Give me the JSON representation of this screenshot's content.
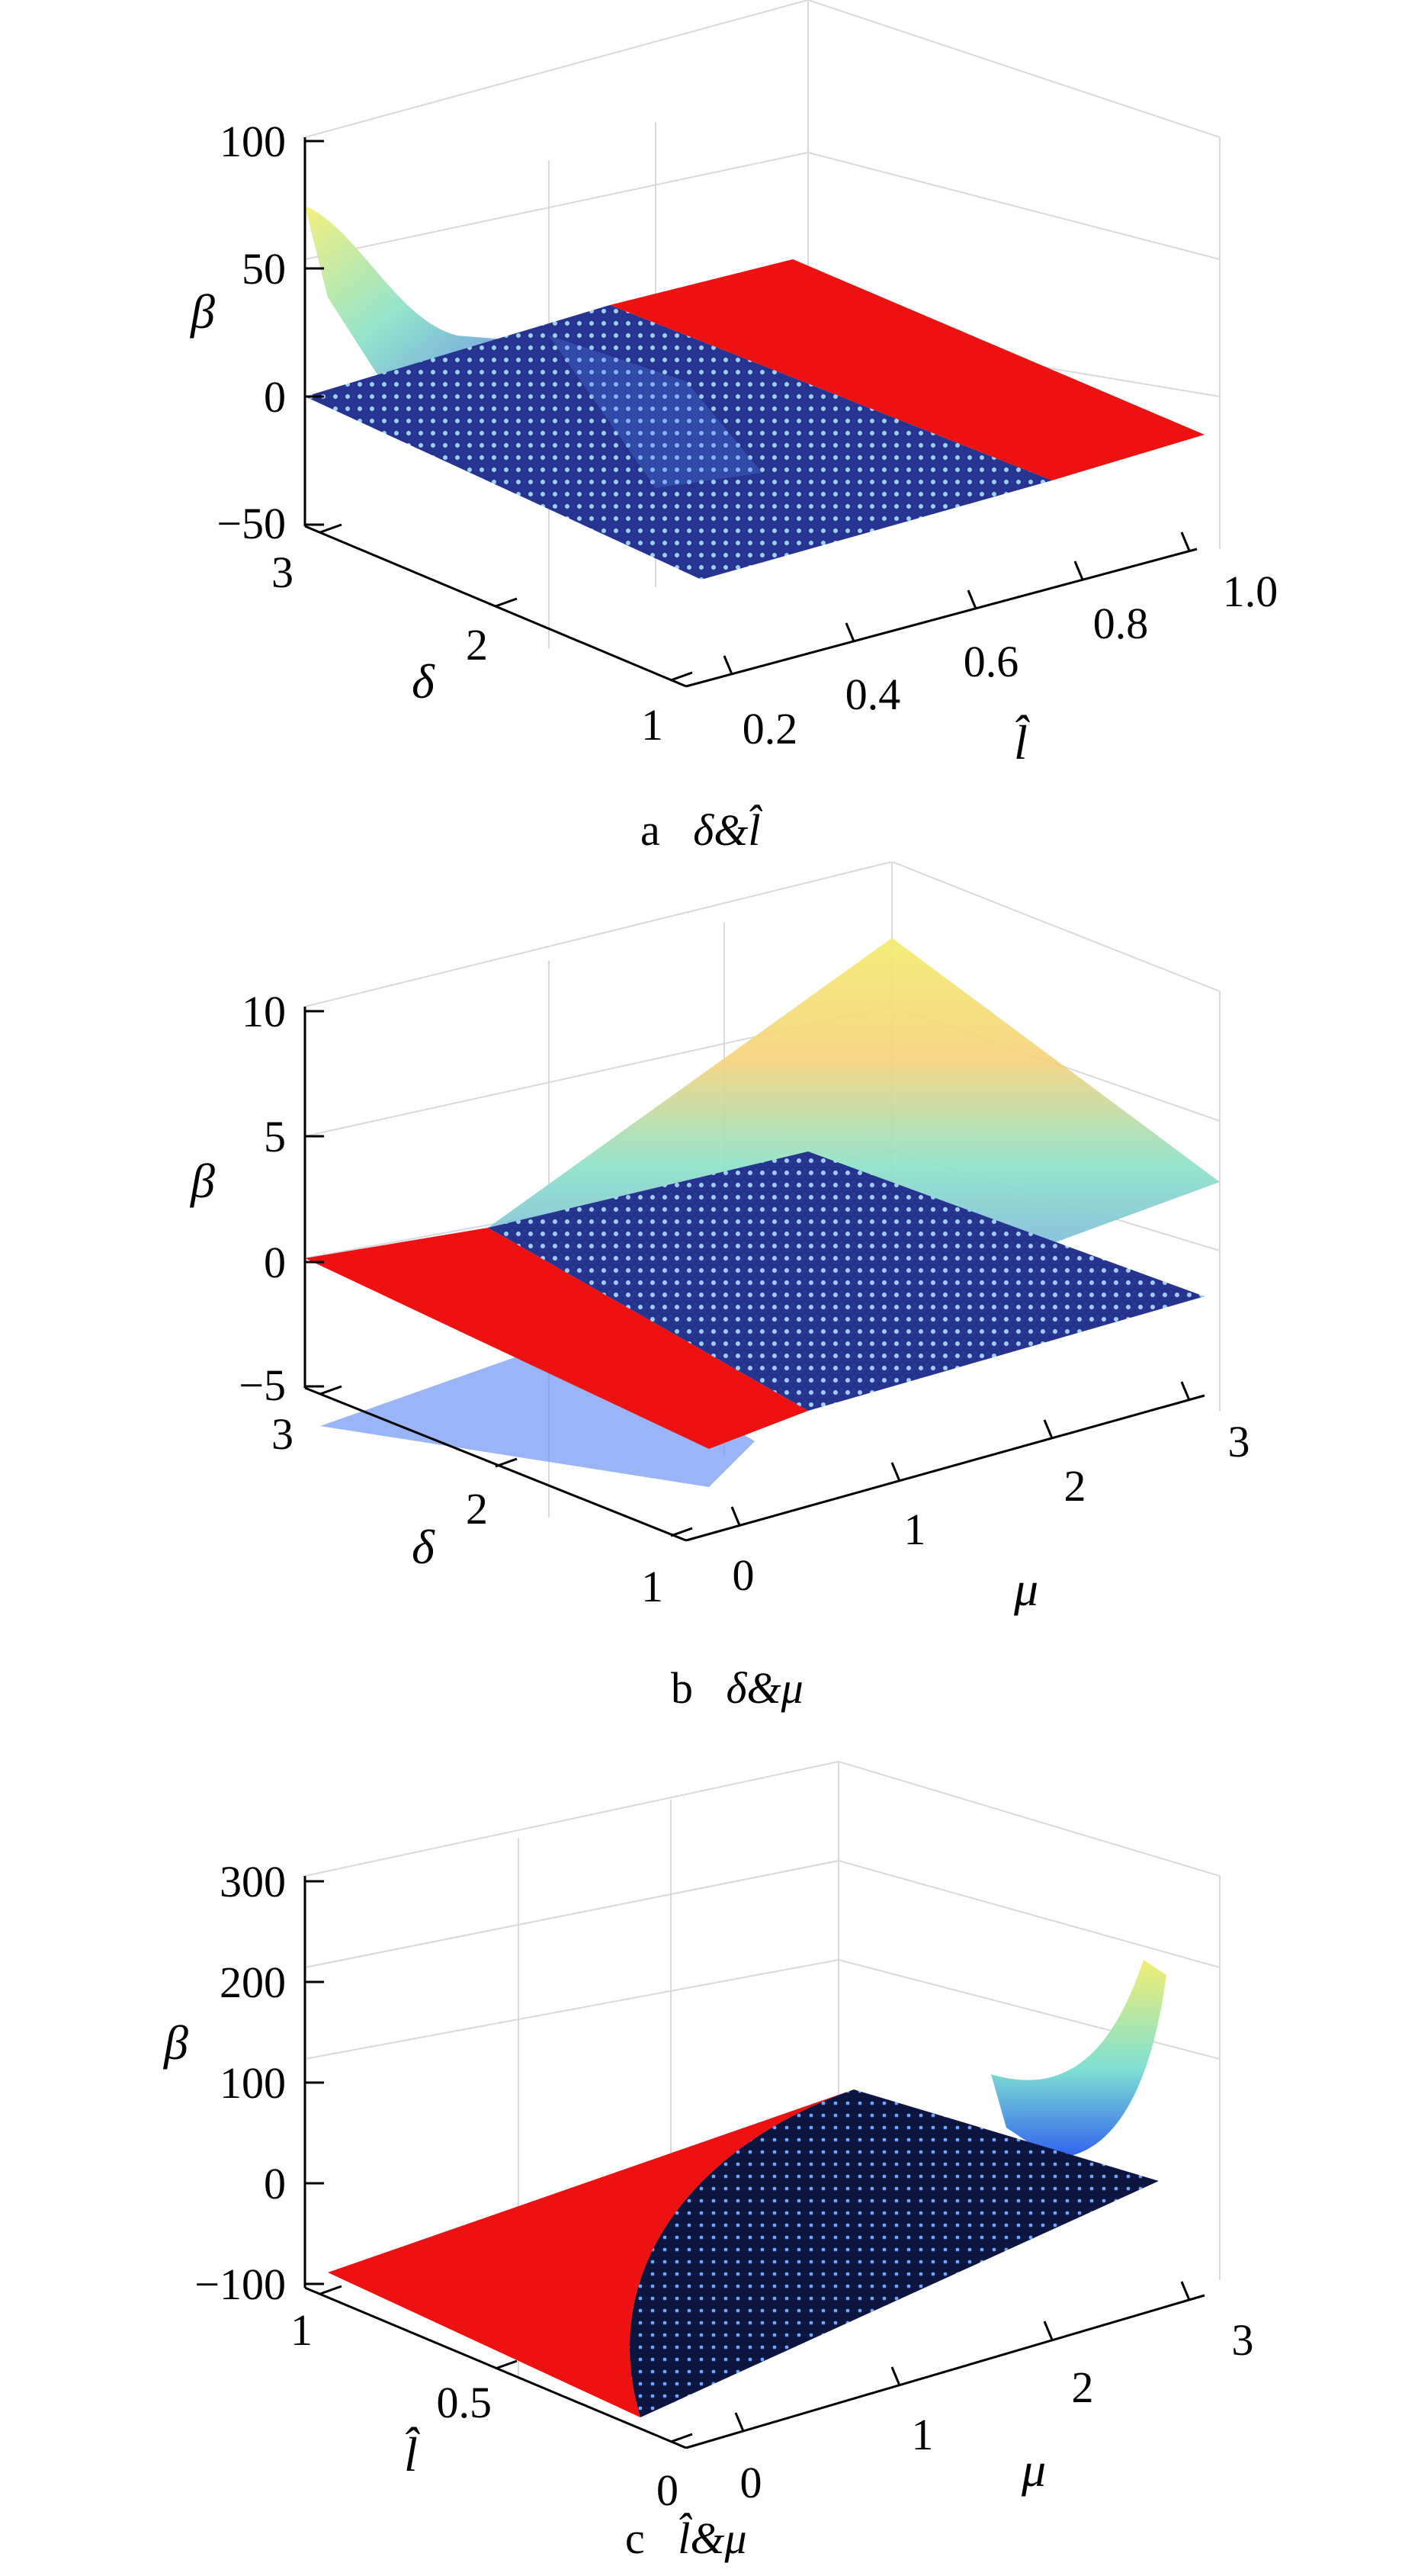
{
  "chart_data": [
    {
      "type": "surface",
      "panel": "a",
      "caption_letter": "a",
      "caption_vars": "δ&l̂",
      "zlabel": "β",
      "ylabel": "δ",
      "xlabel": "l̂",
      "z_ticks": [
        "100",
        "50",
        "0",
        "−50"
      ],
      "z_tick_values": [
        100,
        50,
        0,
        -50
      ],
      "y_ticks": [
        "3",
        "2",
        "1"
      ],
      "x_ticks": [
        "0.2",
        "0.4",
        "0.6",
        "0.8",
        "1.0"
      ],
      "zlim": [
        -50,
        100
      ],
      "ylim": [
        1,
        3
      ],
      "xlim": [
        0.2,
        1.0
      ],
      "grid": true,
      "surfaces": [
        "gradient surface (yellow-cyan-blue)",
        "red region",
        "blue marked region"
      ]
    },
    {
      "type": "surface",
      "panel": "b",
      "caption_letter": "b",
      "caption_vars": "δ&μ",
      "zlabel": "β",
      "ylabel": "δ",
      "xlabel": "μ",
      "z_ticks": [
        "10",
        "5",
        "0",
        "−5"
      ],
      "z_tick_values": [
        10,
        5,
        0,
        -5
      ],
      "y_ticks": [
        "3",
        "2",
        "1"
      ],
      "x_ticks": [
        "0",
        "1",
        "2",
        "3"
      ],
      "zlim": [
        -5,
        10
      ],
      "ylim": [
        1,
        3
      ],
      "xlim": [
        0,
        3
      ],
      "grid": true,
      "surfaces": [
        "gradient surface (yellow-cyan-blue)",
        "red region",
        "blue marked region"
      ]
    },
    {
      "type": "surface",
      "panel": "c",
      "caption_letter": "c",
      "caption_vars": "l̂&μ",
      "zlabel": "β",
      "ylabel": "l̂",
      "xlabel": "μ",
      "z_ticks": [
        "300",
        "200",
        "100",
        "0",
        "−100"
      ],
      "z_tick_values": [
        300,
        200,
        100,
        0,
        -100
      ],
      "y_ticks": [
        "1",
        "0.5",
        "0"
      ],
      "x_ticks": [
        "0",
        "1",
        "2",
        "3"
      ],
      "zlim": [
        -100,
        300
      ],
      "ylim": [
        0,
        1
      ],
      "xlim": [
        0,
        3
      ],
      "grid": true,
      "surfaces": [
        "gradient surface (yellow-cyan-blue)",
        "red region",
        "dark blue marked region"
      ]
    }
  ],
  "colors": {
    "red_region": "#ee1111",
    "blue_region": "#26348f",
    "dark_region": "#0d1640",
    "dot": "#9fd0ff",
    "grad_top": "#f4ef77",
    "grad_mid": "#7fe0d2",
    "grad_low": "#5a7bea"
  }
}
